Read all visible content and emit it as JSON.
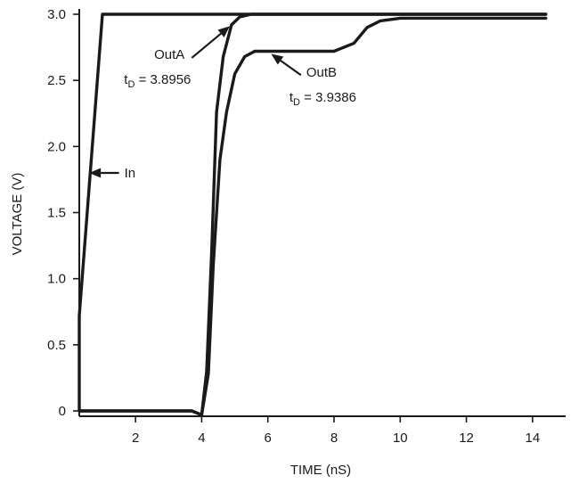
{
  "chart_data": {
    "type": "line",
    "xlabel": "TIME (nS)",
    "ylabel": "VOLTAGE (V)",
    "xlim": [
      0.3,
      15.0
    ],
    "ylim": [
      0.0,
      3.0
    ],
    "xticks": [
      {
        "value": 2,
        "label": "2"
      },
      {
        "value": 4,
        "label": "4"
      },
      {
        "value": 6,
        "label": "6"
      },
      {
        "value": 8,
        "label": "8"
      },
      {
        "value": 10,
        "label": "10"
      },
      {
        "value": 12,
        "label": "12"
      },
      {
        "value": 14,
        "label": "14"
      }
    ],
    "yticks": [
      {
        "value": 0.0,
        "label": "0"
      },
      {
        "value": 0.5,
        "label": "0.5"
      },
      {
        "value": 1.0,
        "label": "1.0"
      },
      {
        "value": 1.5,
        "label": "1.5"
      },
      {
        "value": 2.0,
        "label": "2.0"
      },
      {
        "value": 2.5,
        "label": "2.5"
      },
      {
        "value": 3.0,
        "label": "3.0"
      }
    ],
    "grid": false,
    "legend": "none",
    "series": [
      {
        "name": "In",
        "x": [
          0.3,
          0.3,
          1.0,
          14.4
        ],
        "y": [
          0.0,
          0.72,
          3.0,
          3.0
        ]
      },
      {
        "name": "OutA",
        "x": [
          0.3,
          3.7,
          4.0,
          4.15,
          4.3,
          4.45,
          4.65,
          4.9,
          5.15,
          5.5,
          6.5,
          8.0,
          10.0,
          12.0,
          14.4
        ],
        "y": [
          0.0,
          0.0,
          -0.03,
          0.3,
          1.2,
          2.26,
          2.68,
          2.92,
          2.98,
          3.0,
          3.0,
          3.0,
          3.0,
          3.0,
          3.0
        ]
      },
      {
        "name": "OutB",
        "x": [
          0.3,
          3.7,
          4.0,
          4.2,
          4.35,
          4.55,
          4.75,
          5.0,
          5.3,
          5.6,
          6.5,
          8.0,
          8.6,
          9.0,
          9.4,
          10.0,
          12.0,
          14.4
        ],
        "y": [
          0.0,
          0.0,
          -0.03,
          0.28,
          1.1,
          1.9,
          2.26,
          2.55,
          2.68,
          2.72,
          2.72,
          2.72,
          2.78,
          2.9,
          2.95,
          2.97,
          2.97,
          2.97
        ]
      }
    ],
    "annotations": [
      {
        "name": "In",
        "text": "In",
        "sub": "",
        "tail": [
          1.5,
          1.8
        ],
        "head": [
          0.6,
          1.8
        ]
      },
      {
        "name": "OutA",
        "text": "OutA",
        "sub": "D",
        "prefix": "t",
        "value": " = 3.8956",
        "tail": [
          3.7,
          2.67
        ],
        "head": [
          4.85,
          2.91
        ]
      },
      {
        "name": "OutB",
        "text": "OutB",
        "sub": "D",
        "prefix": "t",
        "value": " = 3.9386",
        "tail": [
          7.0,
          2.54
        ],
        "head": [
          6.1,
          2.7
        ]
      }
    ]
  }
}
